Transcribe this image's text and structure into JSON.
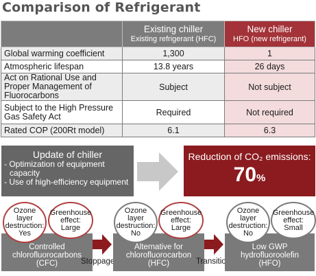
{
  "title": "Comparison of Refrigerant",
  "table": {
    "columns": [
      {
        "main": "",
        "sub": ""
      },
      {
        "main": "Existing chiller",
        "sub": "Existing refrigerant (HFC)"
      },
      {
        "main": "New chiller",
        "sub": "HFO (new refrigerant)"
      }
    ],
    "rows": [
      {
        "label": "Global warming coefficient",
        "existing": "1,300",
        "new": "1"
      },
      {
        "label": "Atmospheric lifespan",
        "existing": "13.8 years",
        "new": "26 days"
      },
      {
        "label": "Act on Rational Use and Proper Management of Fluorocarbons",
        "existing": "Subject",
        "new": "Not subject"
      },
      {
        "label": "Subject to the High Pressure Gas Safety Act",
        "existing": "Required",
        "new": "Not required"
      },
      {
        "label": "Rated COP (200Rt model)",
        "existing": "6.1",
        "new": "6.3"
      }
    ]
  },
  "update": {
    "heading": "Update of chiller",
    "items": [
      "- Optimization of equipment",
      "capacity",
      "- Use of high-efficiency equipment"
    ]
  },
  "reduction": {
    "heading": "Reduction of CO₂ emissions:",
    "value": "70",
    "unit": "%"
  },
  "stages": [
    {
      "ozone": {
        "l1": "Ozone",
        "l2": "layer",
        "l3": "destruction:",
        "l4": "Yes"
      },
      "greenhouse": {
        "l1": "Greenhouse",
        "l2": "effect:",
        "l3": "Large"
      },
      "name": [
        "Controlled",
        "chlorofluorocarbons",
        "(CFC)"
      ]
    },
    {
      "ozone": {
        "l1": "Ozone",
        "l2": "layer",
        "l3": "destruction:",
        "l4": "No"
      },
      "greenhouse": {
        "l1": "Greenhouse",
        "l2": "effect:",
        "l3": "Large"
      },
      "name": [
        "Alternative for",
        "chlorofluorocarbon",
        "(HFC)"
      ]
    },
    {
      "ozone": {
        "l1": "Ozone",
        "l2": "layer",
        "l3": "destruction:",
        "l4": "No"
      },
      "greenhouse": {
        "l1": "Greenhouse",
        "l2": "effect:",
        "l3": "Small"
      },
      "name": [
        "Low GWP",
        "hydrofluoroolefin",
        "(HFO)"
      ]
    }
  ],
  "transitions": [
    "Stoppage",
    "Transition"
  ],
  "colors": {
    "accent_red": "#8b1b1f",
    "gray": "#7a7a7a",
    "pink_cell": "#f4dcdc"
  }
}
